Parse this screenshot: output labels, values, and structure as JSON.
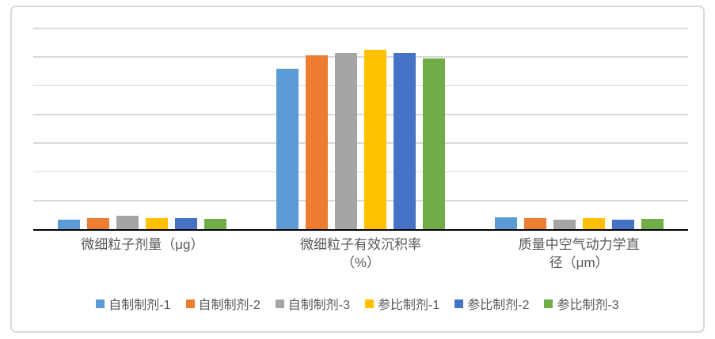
{
  "chart_data": {
    "type": "bar",
    "title": "",
    "xlabel": "",
    "ylabel": "",
    "categories": [
      "微细粒子剂量（μg）",
      "微细粒子有效沉积率\n（%）",
      "质量中空气动力学直径（μm）"
    ],
    "series": [
      {
        "name": "自制制剂-1",
        "color": "#5B9BD5",
        "values": [
          3.2,
          55.6,
          3.9
        ]
      },
      {
        "name": "自制制剂-2",
        "color": "#ED7D31",
        "values": [
          3.8,
          60.4,
          3.6
        ]
      },
      {
        "name": "自制制剂-3",
        "color": "#A5A5A5",
        "values": [
          4.6,
          61.2,
          3.3
        ]
      },
      {
        "name": "参比制剂-1",
        "color": "#FFC000",
        "values": [
          3.8,
          62.3,
          3.6
        ]
      },
      {
        "name": "参比制剂-2",
        "color": "#4472C4",
        "values": [
          3.8,
          61.2,
          3.3
        ]
      },
      {
        "name": "参比制剂-3",
        "color": "#70AD47",
        "values": [
          3.5,
          59.3,
          3.4
        ]
      }
    ],
    "ylim": [
      0,
      70
    ],
    "gridline_step": 10,
    "gridline_count": 7,
    "grid": true,
    "y_axis_labels_visible": false,
    "legend_position": "bottom",
    "colors": {
      "frame_border": "#D9D9D9",
      "gridline": "#D9D9D9",
      "axis_line": "#000000",
      "label_text": "#595959",
      "background": "#FFFFFF"
    }
  }
}
